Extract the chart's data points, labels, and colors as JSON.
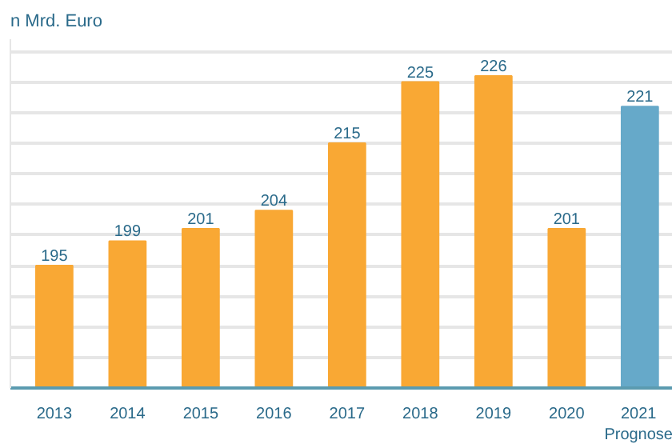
{
  "chart_data": {
    "type": "bar",
    "annotations": [
      "n Mrd. Euro"
    ],
    "categories": [
      "2013",
      "2014",
      "2015",
      "2016",
      "2017",
      "2018",
      "2019",
      "2020",
      "2021\nPrognose"
    ],
    "values": [
      195,
      199,
      201,
      204,
      215,
      225,
      226,
      201,
      221
    ],
    "colors": [
      "#f9a834",
      "#f9a834",
      "#f9a834",
      "#f9a834",
      "#f9a834",
      "#f9a834",
      "#f9a834",
      "#f9a834",
      "#66a9c9"
    ],
    "data_labels": true,
    "ylim": [
      175,
      232
    ],
    "yticks": [
      {
        "value": 180,
        "label": null
      },
      {
        "value": 185,
        "label": null
      },
      {
        "value": 190,
        "label": null
      },
      {
        "value": 195,
        "label": null
      },
      {
        "value": 200,
        "label": null
      },
      {
        "value": 205,
        "label": null
      },
      {
        "value": 210,
        "label": null
      },
      {
        "value": 215,
        "label": null
      },
      {
        "value": 220,
        "label": null
      },
      {
        "value": 225,
        "label": null
      },
      {
        "value": 230,
        "label": null
      }
    ],
    "grid": "y",
    "tick_labels": "x"
  }
}
